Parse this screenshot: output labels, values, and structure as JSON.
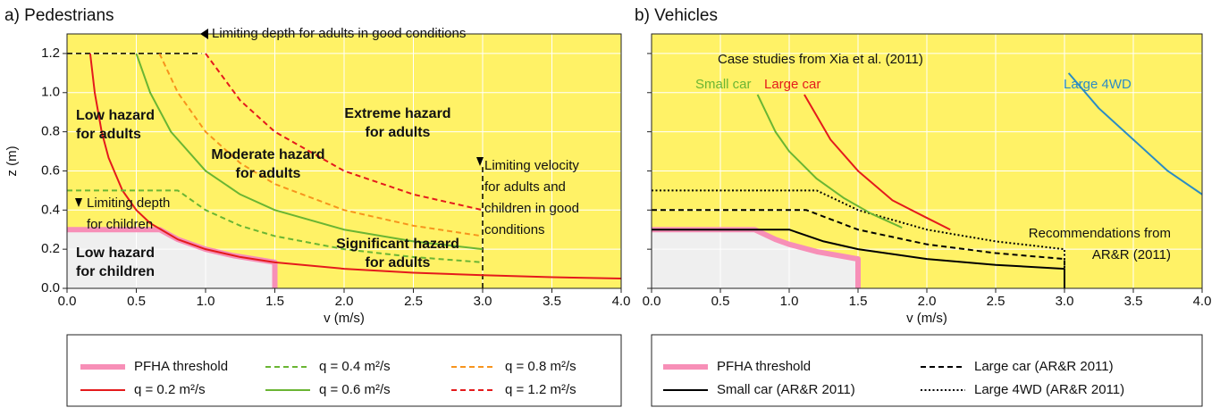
{
  "chart_data": [
    {
      "type": "line",
      "title": "a) Pedestrians",
      "xlabel": "v (m/s)",
      "ylabel": "z (m)",
      "xlim": [
        0,
        4
      ],
      "ylim": [
        0,
        1.3
      ],
      "xticks": [
        {
          "value": 0,
          "label": "0.0"
        },
        0.5,
        {
          "value": 1,
          "label": "1.0"
        },
        1.5,
        {
          "value": 2,
          "label": "2.0"
        },
        2.5,
        {
          "value": 3,
          "label": "3.0"
        },
        3.5,
        {
          "value": 4,
          "label": "4.0"
        }
      ],
      "yticks": [
        {
          "value": 0,
          "label": "0.0"
        },
        0.2,
        0.4,
        0.6,
        0.8,
        {
          "value": 1,
          "label": "1.0"
        },
        1.2
      ],
      "grid": true,
      "background": "#fff266",
      "threshold_fill": "#efefef",
      "series": [
        {
          "name": "PFHA threshold",
          "color": "#f78fb7",
          "dash": "solid",
          "width": 6,
          "x": [
            0,
            0.67,
            0.8,
            1,
            1.2,
            1.5,
            1.5
          ],
          "values": [
            0.3,
            0.3,
            0.25,
            0.2,
            0.167,
            0.133,
            0
          ]
        },
        {
          "name": "q = 0.2 m²/s",
          "color": "#e41a1c",
          "dash": "solid",
          "width": 2,
          "x": [
            0.167,
            0.2,
            0.25,
            0.3,
            0.4,
            0.5,
            0.6,
            0.8,
            1,
            1.25,
            1.5,
            2,
            2.5,
            3,
            3.5,
            4
          ],
          "values": [
            1.2,
            1,
            0.8,
            0.667,
            0.5,
            0.4,
            0.333,
            0.25,
            0.2,
            0.16,
            0.133,
            0.1,
            0.08,
            0.067,
            0.057,
            0.05
          ]
        },
        {
          "name": "q = 0.4 m²/s",
          "color": "#6ab533",
          "dash": "dashed",
          "width": 2,
          "x": [
            0,
            0.8,
            1,
            1.25,
            1.5,
            2,
            2.5,
            3
          ],
          "values": [
            0.5,
            0.5,
            0.4,
            0.32,
            0.267,
            0.2,
            0.16,
            0.133
          ]
        },
        {
          "name": "q = 0.6 m²/s",
          "color": "#6ab533",
          "dash": "solid",
          "width": 2,
          "x": [
            0.5,
            0.6,
            0.75,
            1,
            1.25,
            1.5,
            2,
            2.5,
            3
          ],
          "values": [
            1.2,
            1,
            0.8,
            0.6,
            0.48,
            0.4,
            0.3,
            0.24,
            0.2
          ]
        },
        {
          "name": "q = 0.8 m²/s",
          "color": "#f7941d",
          "dash": "dashed",
          "width": 2,
          "x": [
            0.667,
            0.8,
            1,
            1.25,
            1.5,
            2,
            2.5,
            3
          ],
          "values": [
            1.2,
            1,
            0.8,
            0.64,
            0.533,
            0.4,
            0.32,
            0.267
          ]
        },
        {
          "name": "q = 1.2 m²/s",
          "color": "#e41a1c",
          "dash": "dashed",
          "width": 2,
          "x": [
            1,
            1.25,
            1.5,
            2,
            2.5,
            3
          ],
          "values": [
            1.2,
            0.96,
            0.8,
            0.6,
            0.48,
            0.4
          ]
        }
      ],
      "reference_lines": [
        {
          "x": [
            0,
            0.97
          ],
          "values": [
            1.2,
            1.2
          ]
        },
        {
          "x": [
            3,
            3
          ],
          "values": [
            0,
            0.62
          ]
        }
      ],
      "annotations": [
        {
          "lines": [
            "Limiting depth for adults in good conditions"
          ],
          "bold": false
        },
        {
          "lines": [
            "Low hazard",
            "for adults"
          ],
          "bold": true
        },
        {
          "lines": [
            "Extreme hazard",
            "for adults"
          ],
          "bold": true
        },
        {
          "lines": [
            "Moderate hazard",
            "for adults"
          ],
          "bold": true
        },
        {
          "lines": [
            "Limiting velocity",
            "for adults and",
            "children in good",
            "conditions"
          ],
          "bold": false
        },
        {
          "lines": [
            "Limiting depth",
            "for children"
          ],
          "bold": false
        },
        {
          "lines": [
            "Significant hazard",
            "for adults"
          ],
          "bold": true
        },
        {
          "lines": [
            "Low hazard",
            "for children"
          ],
          "bold": true
        }
      ]
    },
    {
      "type": "line",
      "title": "b) Vehicles",
      "xlabel": "v (m/s)",
      "xlim": [
        0,
        4
      ],
      "ylim": [
        0,
        1.3
      ],
      "xticks": [
        {
          "value": 0,
          "label": "0.0"
        },
        0.5,
        {
          "value": 1,
          "label": "1.0"
        },
        1.5,
        {
          "value": 2,
          "label": "2.0"
        },
        2.5,
        {
          "value": 3,
          "label": "3.0"
        },
        3.5,
        {
          "value": 4,
          "label": "4.0"
        }
      ],
      "yticks": [
        0,
        0.2,
        0.4,
        0.6,
        0.8,
        1,
        1.2
      ],
      "grid": true,
      "background": "#fff266",
      "threshold_fill": "#efefef",
      "series": [
        {
          "name": "PFHA threshold",
          "color": "#f78fb7",
          "dash": "solid",
          "width": 6,
          "x": [
            0,
            0.75,
            0.9,
            1,
            1.2,
            1.5,
            1.5
          ],
          "values": [
            0.3,
            0.3,
            0.25,
            0.225,
            0.1875,
            0.15,
            0
          ]
        },
        {
          "name": "Small car (AR&R 2011)",
          "color": "#000000",
          "dash": "solid",
          "width": 2,
          "x": [
            0,
            1,
            1.25,
            1.5,
            2,
            2.5,
            3,
            3
          ],
          "values": [
            0.3,
            0.3,
            0.24,
            0.2,
            0.15,
            0.12,
            0.1,
            0
          ]
        },
        {
          "name": "Large car (AR&R 2011)",
          "color": "#000000",
          "dash": "dashed",
          "width": 2,
          "x": [
            0,
            1.125,
            1.5,
            2,
            2.5,
            3,
            3
          ],
          "values": [
            0.4,
            0.4,
            0.3,
            0.225,
            0.18,
            0.15,
            0
          ]
        },
        {
          "name": "Large 4WD (AR&R 2011)",
          "color": "#000000",
          "dash": "dotted",
          "width": 2,
          "x": [
            0,
            1.2,
            1.5,
            2,
            2.5,
            3,
            3
          ],
          "values": [
            0.5,
            0.5,
            0.4,
            0.3,
            0.24,
            0.2,
            0
          ]
        }
      ],
      "case_studies": {
        "title": "Case studies from Xia et al. (2011)",
        "series": [
          {
            "name": "Small car",
            "color": "#6ab533",
            "x": [
              0.77,
              0.9,
              1,
              1.2,
              1.4,
              1.6,
              1.82
            ],
            "values": [
              0.99,
              0.8,
              0.7,
              0.56,
              0.46,
              0.38,
              0.31
            ]
          },
          {
            "name": "Large car",
            "color": "#e41a1c",
            "x": [
              1.11,
              1.3,
              1.5,
              1.75,
              2,
              2.17
            ],
            "values": [
              0.99,
              0.76,
              0.6,
              0.45,
              0.36,
              0.3
            ]
          },
          {
            "name": "Large 4WD",
            "color": "#2b8cc4",
            "x": [
              3.03,
              3.25,
              3.5,
              3.75,
              4
            ],
            "values": [
              1.1,
              0.92,
              0.76,
              0.6,
              0.48
            ]
          }
        ]
      },
      "annotations": [
        {
          "lines": [
            "Recommendations from",
            "AR&R (2011)"
          ],
          "bold": false
        }
      ]
    }
  ]
}
